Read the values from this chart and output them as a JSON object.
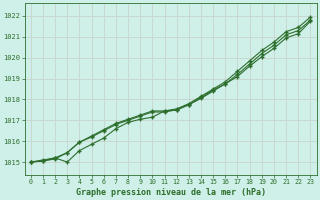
{
  "title": "Graphe pression niveau de la mer (hPa)",
  "background_color": "#cff0e8",
  "grid_color": "#c8d8d0",
  "line_color": "#2d6e2d",
  "xlim": [
    -0.5,
    23.5
  ],
  "ylim": [
    1014.4,
    1022.6
  ],
  "yticks": [
    1015,
    1016,
    1017,
    1018,
    1019,
    1020,
    1021,
    1022
  ],
  "xticks": [
    0,
    1,
    2,
    3,
    4,
    5,
    6,
    7,
    8,
    9,
    10,
    11,
    12,
    13,
    14,
    15,
    16,
    17,
    18,
    19,
    20,
    21,
    22,
    23
  ],
  "series1": [
    1015.0,
    1015.1,
    1015.2,
    1015.0,
    1015.55,
    1015.85,
    1016.15,
    1016.6,
    1016.9,
    1017.05,
    1017.15,
    1017.45,
    1017.5,
    1017.75,
    1018.05,
    1018.4,
    1018.75,
    1019.1,
    1019.6,
    1020.05,
    1020.45,
    1020.95,
    1021.15,
    1021.75
  ],
  "series2": [
    1015.0,
    1015.05,
    1015.15,
    1015.45,
    1015.95,
    1016.25,
    1016.55,
    1016.85,
    1017.05,
    1017.25,
    1017.45,
    1017.45,
    1017.55,
    1017.8,
    1018.15,
    1018.5,
    1018.85,
    1019.35,
    1019.85,
    1020.35,
    1020.75,
    1021.25,
    1021.45,
    1021.95
  ],
  "series3": [
    1015.0,
    1015.05,
    1015.2,
    1015.45,
    1015.95,
    1016.2,
    1016.5,
    1016.8,
    1017.0,
    1017.2,
    1017.4,
    1017.4,
    1017.5,
    1017.75,
    1018.1,
    1018.45,
    1018.75,
    1019.2,
    1019.7,
    1020.2,
    1020.6,
    1021.1,
    1021.3,
    1021.8
  ]
}
